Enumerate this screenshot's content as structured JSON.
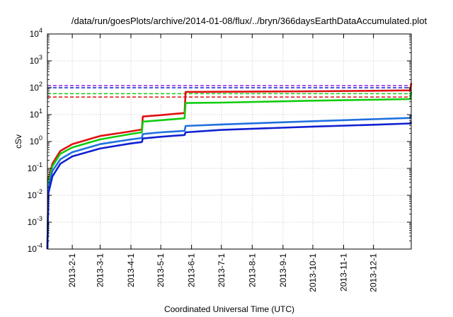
{
  "chart_data": {
    "type": "line",
    "title": "/data/run/goesPlots/archive/2014-01-08/flux/../bryn/366daysEarthDataAccumulated.plot",
    "xlabel": "Coordinated Universal Time (UTC)",
    "ylabel": "cSv",
    "y_scale": "log",
    "ylim": [
      0.0001,
      10000
    ],
    "xlim": [
      "2013-01-07",
      "2014-01-08"
    ],
    "grid": true,
    "y_ticks": [
      {
        "base": "10",
        "exp": "-4",
        "value": 0.0001
      },
      {
        "base": "10",
        "exp": "-3",
        "value": 0.001
      },
      {
        "base": "10",
        "exp": "-2",
        "value": 0.01
      },
      {
        "base": "10",
        "exp": "-1",
        "value": 0.1
      },
      {
        "base": "10",
        "exp": "0",
        "value": 1
      },
      {
        "base": "10",
        "exp": "1",
        "value": 10
      },
      {
        "base": "10",
        "exp": "2",
        "value": 100
      },
      {
        "base": "10",
        "exp": "3",
        "value": 1000
      },
      {
        "base": "10",
        "exp": "4",
        "value": 10000
      }
    ],
    "x_ticks": [
      {
        "label": "2013-2-1",
        "date": "2013-02-01"
      },
      {
        "label": "2013-3-1",
        "date": "2013-03-01"
      },
      {
        "label": "2013-4-1",
        "date": "2013-04-01"
      },
      {
        "label": "2013-5-1",
        "date": "2013-05-01"
      },
      {
        "label": "2013-6-1",
        "date": "2013-06-01"
      },
      {
        "label": "2013-7-1",
        "date": "2013-07-01"
      },
      {
        "label": "2013-8-1",
        "date": "2013-08-01"
      },
      {
        "label": "2013-9-1",
        "date": "2013-09-01"
      },
      {
        "label": "2013-10-1",
        "date": "2013-10-01"
      },
      {
        "label": "2013-11-1",
        "date": "2013-11-01"
      },
      {
        "label": "2013-12-1",
        "date": "2013-12-01"
      }
    ],
    "series": [
      {
        "color": "#e01010",
        "points": [
          [
            "2013-01-07",
            0.0001
          ],
          [
            "2013-01-08",
            0.04
          ],
          [
            "2013-01-12",
            0.15
          ],
          [
            "2013-01-20",
            0.45
          ],
          [
            "2013-02-01",
            0.8
          ],
          [
            "2013-03-01",
            1.6
          ],
          [
            "2013-04-01",
            2.4
          ],
          [
            "2013-04-12",
            2.8
          ],
          [
            "2013-04-13",
            8.5
          ],
          [
            "2013-05-01",
            9.6
          ],
          [
            "2013-05-25",
            11.5
          ],
          [
            "2013-05-26",
            70
          ],
          [
            "2013-07-01",
            71
          ],
          [
            "2013-10-01",
            74
          ],
          [
            "2013-12-01",
            77
          ],
          [
            "2014-01-07",
            80
          ],
          [
            "2014-01-08",
            150
          ]
        ]
      },
      {
        "color": "#10cc10",
        "points": [
          [
            "2013-01-07",
            0.0001
          ],
          [
            "2013-01-08",
            0.03
          ],
          [
            "2013-01-12",
            0.12
          ],
          [
            "2013-01-20",
            0.35
          ],
          [
            "2013-02-01",
            0.6
          ],
          [
            "2013-03-01",
            1.2
          ],
          [
            "2013-04-01",
            1.9
          ],
          [
            "2013-04-12",
            2.2
          ],
          [
            "2013-04-13",
            5.5
          ],
          [
            "2013-05-01",
            6.2
          ],
          [
            "2013-05-25",
            7.3
          ],
          [
            "2013-05-26",
            27
          ],
          [
            "2013-07-01",
            28
          ],
          [
            "2013-10-01",
            33
          ],
          [
            "2013-12-01",
            36
          ],
          [
            "2014-01-07",
            38
          ],
          [
            "2014-01-08",
            70
          ]
        ]
      },
      {
        "color": "#2070e0",
        "points": [
          [
            "2013-01-07",
            0.0001
          ],
          [
            "2013-01-08",
            0.02
          ],
          [
            "2013-01-12",
            0.08
          ],
          [
            "2013-01-20",
            0.22
          ],
          [
            "2013-02-01",
            0.4
          ],
          [
            "2013-03-01",
            0.8
          ],
          [
            "2013-04-01",
            1.2
          ],
          [
            "2013-04-12",
            1.35
          ],
          [
            "2013-04-13",
            1.9
          ],
          [
            "2013-05-01",
            2.2
          ],
          [
            "2013-05-25",
            2.5
          ],
          [
            "2013-05-26",
            3.8
          ],
          [
            "2013-07-01",
            4.3
          ],
          [
            "2013-10-01",
            5.7
          ],
          [
            "2013-12-01",
            6.8
          ],
          [
            "2014-01-07",
            7.5
          ],
          [
            "2014-01-08",
            9.5
          ]
        ]
      },
      {
        "color": "#1020d0",
        "points": [
          [
            "2013-01-07",
            0.0001
          ],
          [
            "2013-01-08",
            0.012
          ],
          [
            "2013-01-12",
            0.05
          ],
          [
            "2013-01-20",
            0.15
          ],
          [
            "2013-02-01",
            0.28
          ],
          [
            "2013-03-01",
            0.55
          ],
          [
            "2013-04-01",
            0.85
          ],
          [
            "2013-04-12",
            0.95
          ],
          [
            "2013-04-13",
            1.3
          ],
          [
            "2013-05-01",
            1.5
          ],
          [
            "2013-05-25",
            1.75
          ],
          [
            "2013-05-26",
            2.2
          ],
          [
            "2013-07-01",
            2.7
          ],
          [
            "2013-10-01",
            3.6
          ],
          [
            "2013-12-01",
            4.2
          ],
          [
            "2014-01-07",
            4.7
          ],
          [
            "2014-01-08",
            5.5
          ]
        ]
      }
    ],
    "reference_lines": [
      {
        "color": "#9020e0",
        "value": 120,
        "style": "dashed"
      },
      {
        "color": "#1020d0",
        "value": 100,
        "style": "dashed"
      },
      {
        "color": "#10cc10",
        "value": 60,
        "style": "dashed"
      },
      {
        "color": "#e01010",
        "value": 45,
        "style": "dashed"
      }
    ]
  }
}
